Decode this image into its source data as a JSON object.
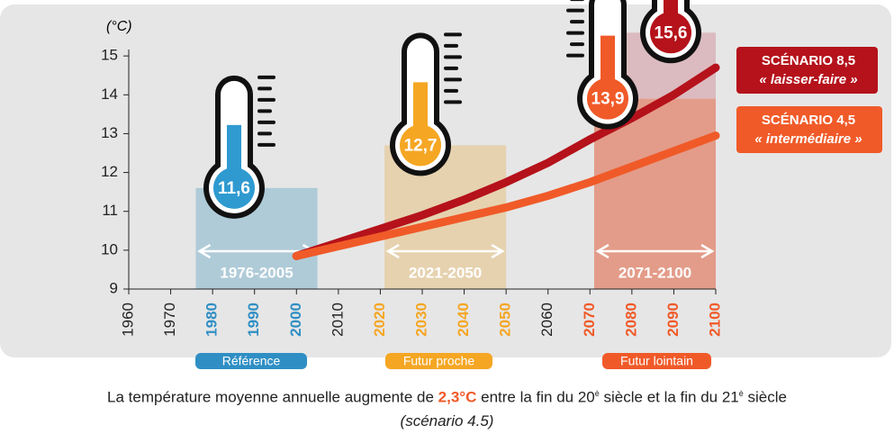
{
  "chart_data": {
    "type": "bar-line",
    "ylabel": "(°C)",
    "ylim": [
      9,
      16
    ],
    "yticks": [
      9,
      10,
      11,
      12,
      13,
      14,
      15
    ],
    "xlim": [
      1960,
      2100
    ],
    "xticks": [
      1960,
      1970,
      1980,
      1990,
      2000,
      2010,
      2020,
      2030,
      2040,
      2050,
      2060,
      2070,
      2080,
      2090,
      2100
    ],
    "xtick_colors": [
      null,
      null,
      "#2f8fc4",
      "#2f8fc4",
      "#2f8fc4",
      null,
      "#f5a623",
      "#f5a623",
      "#f5a623",
      "#f5a623",
      null,
      "#f05a28",
      "#f05a28",
      "#f05a28",
      "#f05a28"
    ],
    "bars": [
      {
        "label": "1976-2005",
        "start": 1976,
        "end": 2005,
        "value": 11.6,
        "value_label": "11,6",
        "color": "#a8c8d6",
        "thermo_color": "#2f9ad0"
      },
      {
        "label": "2021-2050",
        "start": 2021,
        "end": 2050,
        "value": 12.7,
        "value_label": "12,7",
        "color": "#e6cfa8",
        "thermo_color": "#f5a623"
      },
      {
        "label": "2071-2100",
        "start": 2071,
        "end": 2100,
        "value": 13.9,
        "value_label": "13,9",
        "color": "#e2937e",
        "thermo_color": "#f05a28"
      },
      {
        "start": 2071,
        "end": 2100,
        "value": 15.6,
        "value_label": "15,6",
        "color": "#d9b6ba",
        "thermo_color": "#b5121b"
      }
    ],
    "x": [
      2000,
      2010,
      2020,
      2030,
      2040,
      2050,
      2060,
      2070,
      2080,
      2090,
      2100
    ],
    "series": [
      {
        "name": "SCÉNARIO 8,5",
        "subtitle": "« laisser-faire »",
        "color": "#b5121b",
        "values": [
          9.85,
          10.2,
          10.55,
          10.9,
          11.3,
          11.75,
          12.25,
          12.85,
          13.4,
          14.0,
          14.7
        ]
      },
      {
        "name": "SCÉNARIO 4,5",
        "subtitle": "« intermédiaire »",
        "color": "#f05a28",
        "values": [
          9.85,
          10.1,
          10.35,
          10.6,
          10.85,
          11.1,
          11.4,
          11.75,
          12.15,
          12.55,
          12.95
        ]
      }
    ],
    "periods": [
      {
        "name": "Référence",
        "color": "#2f8fc4"
      },
      {
        "name": "Futur proche",
        "color": "#f5a623"
      },
      {
        "name": "Futur lointain",
        "color": "#f05a28"
      }
    ],
    "caption": {
      "part1": "La température moyenne annuelle augmente de ",
      "highlight": "2,3°C",
      "part2": " entre la fin du 20",
      "sup1": "è",
      "part3": " siècle et la fin du 21",
      "sup2": "è",
      "part4": " siècle",
      "line2": "(scénario 4.5)"
    }
  }
}
